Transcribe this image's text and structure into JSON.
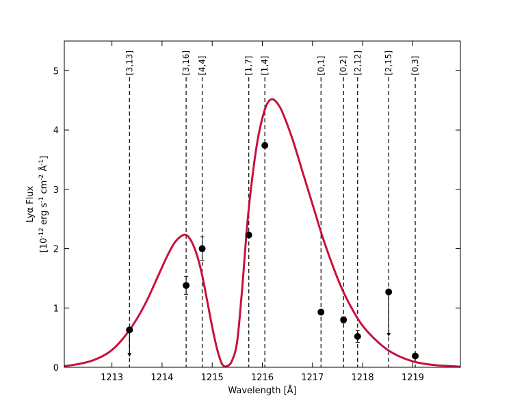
{
  "chart_data": {
    "type": "line",
    "xlabel": "Wavelength [Å]",
    "ylabel_line1": "Lyα Flux",
    "ylabel_units": {
      "open": "[10",
      "exp1": "-12",
      "erg": " erg s",
      "exp2": "-1",
      "cm": " cm",
      "exp3": "-2",
      "ang": " Å",
      "exp4": "-1",
      "close": "]"
    },
    "xlim": [
      1212.05,
      1219.95
    ],
    "ylim": [
      0,
      5.5
    ],
    "x_ticks": [
      1213,
      1214,
      1215,
      1216,
      1217,
      1218,
      1219
    ],
    "y_ticks": [
      0,
      1,
      2,
      3,
      4,
      5
    ],
    "grid": false,
    "colors": {
      "model": "#c8103e",
      "points": "#000000"
    },
    "model": {
      "x": [
        1212.05,
        1212.3,
        1212.6,
        1212.9,
        1213.1,
        1213.3,
        1213.5,
        1213.7,
        1213.9,
        1214.1,
        1214.25,
        1214.4,
        1214.5,
        1214.6,
        1214.7,
        1214.8,
        1214.9,
        1215.0,
        1215.1,
        1215.2,
        1215.3,
        1215.4,
        1215.5,
        1215.6,
        1215.7,
        1215.8,
        1215.9,
        1216.0,
        1216.1,
        1216.2,
        1216.3,
        1216.4,
        1216.6,
        1216.8,
        1217.0,
        1217.2,
        1217.4,
        1217.6,
        1217.8,
        1218.0,
        1218.3,
        1218.6,
        1219.0,
        1219.4,
        1219.95
      ],
      "y": [
        0.02,
        0.05,
        0.11,
        0.23,
        0.37,
        0.57,
        0.82,
        1.13,
        1.5,
        1.87,
        2.1,
        2.22,
        2.22,
        2.1,
        1.88,
        1.55,
        1.12,
        0.68,
        0.3,
        0.05,
        0.02,
        0.12,
        0.45,
        1.35,
        2.42,
        3.2,
        3.8,
        4.2,
        4.45,
        4.52,
        4.45,
        4.3,
        3.85,
        3.3,
        2.75,
        2.2,
        1.72,
        1.3,
        0.97,
        0.7,
        0.43,
        0.24,
        0.1,
        0.04,
        0.01
      ]
    },
    "points": [
      {
        "x": 1213.35,
        "y": 0.63,
        "limit_to": 0.18
      },
      {
        "x": 1214.48,
        "y": 1.38,
        "err": 0.15
      },
      {
        "x": 1214.8,
        "y": 2.0,
        "err": 0.2
      },
      {
        "x": 1215.73,
        "y": 2.23,
        "err": 0.03
      },
      {
        "x": 1216.05,
        "y": 3.74,
        "err": 0.03
      },
      {
        "x": 1217.17,
        "y": 0.93,
        "err": 0.03
      },
      {
        "x": 1217.62,
        "y": 0.8,
        "err": 0.05
      },
      {
        "x": 1217.9,
        "y": 0.52,
        "err": 0.1
      },
      {
        "x": 1218.52,
        "y": 1.27,
        "limit_to": 0.52
      },
      {
        "x": 1219.05,
        "y": 0.19,
        "err": 0.02
      }
    ],
    "annotations": [
      {
        "label": "[3,13]",
        "x": 1213.35
      },
      {
        "label": "[3,16]",
        "x": 1214.48
      },
      {
        "label": "[4,4]",
        "x": 1214.8
      },
      {
        "label": "[1,7]",
        "x": 1215.73
      },
      {
        "label": "[1,4]",
        "x": 1216.05
      },
      {
        "label": "[0,1]",
        "x": 1217.17
      },
      {
        "label": "[0,2]",
        "x": 1217.62
      },
      {
        "label": "[2,12]",
        "x": 1217.9
      },
      {
        "label": "[2,15]",
        "x": 1218.52
      },
      {
        "label": "[0,3]",
        "x": 1219.05
      }
    ]
  }
}
